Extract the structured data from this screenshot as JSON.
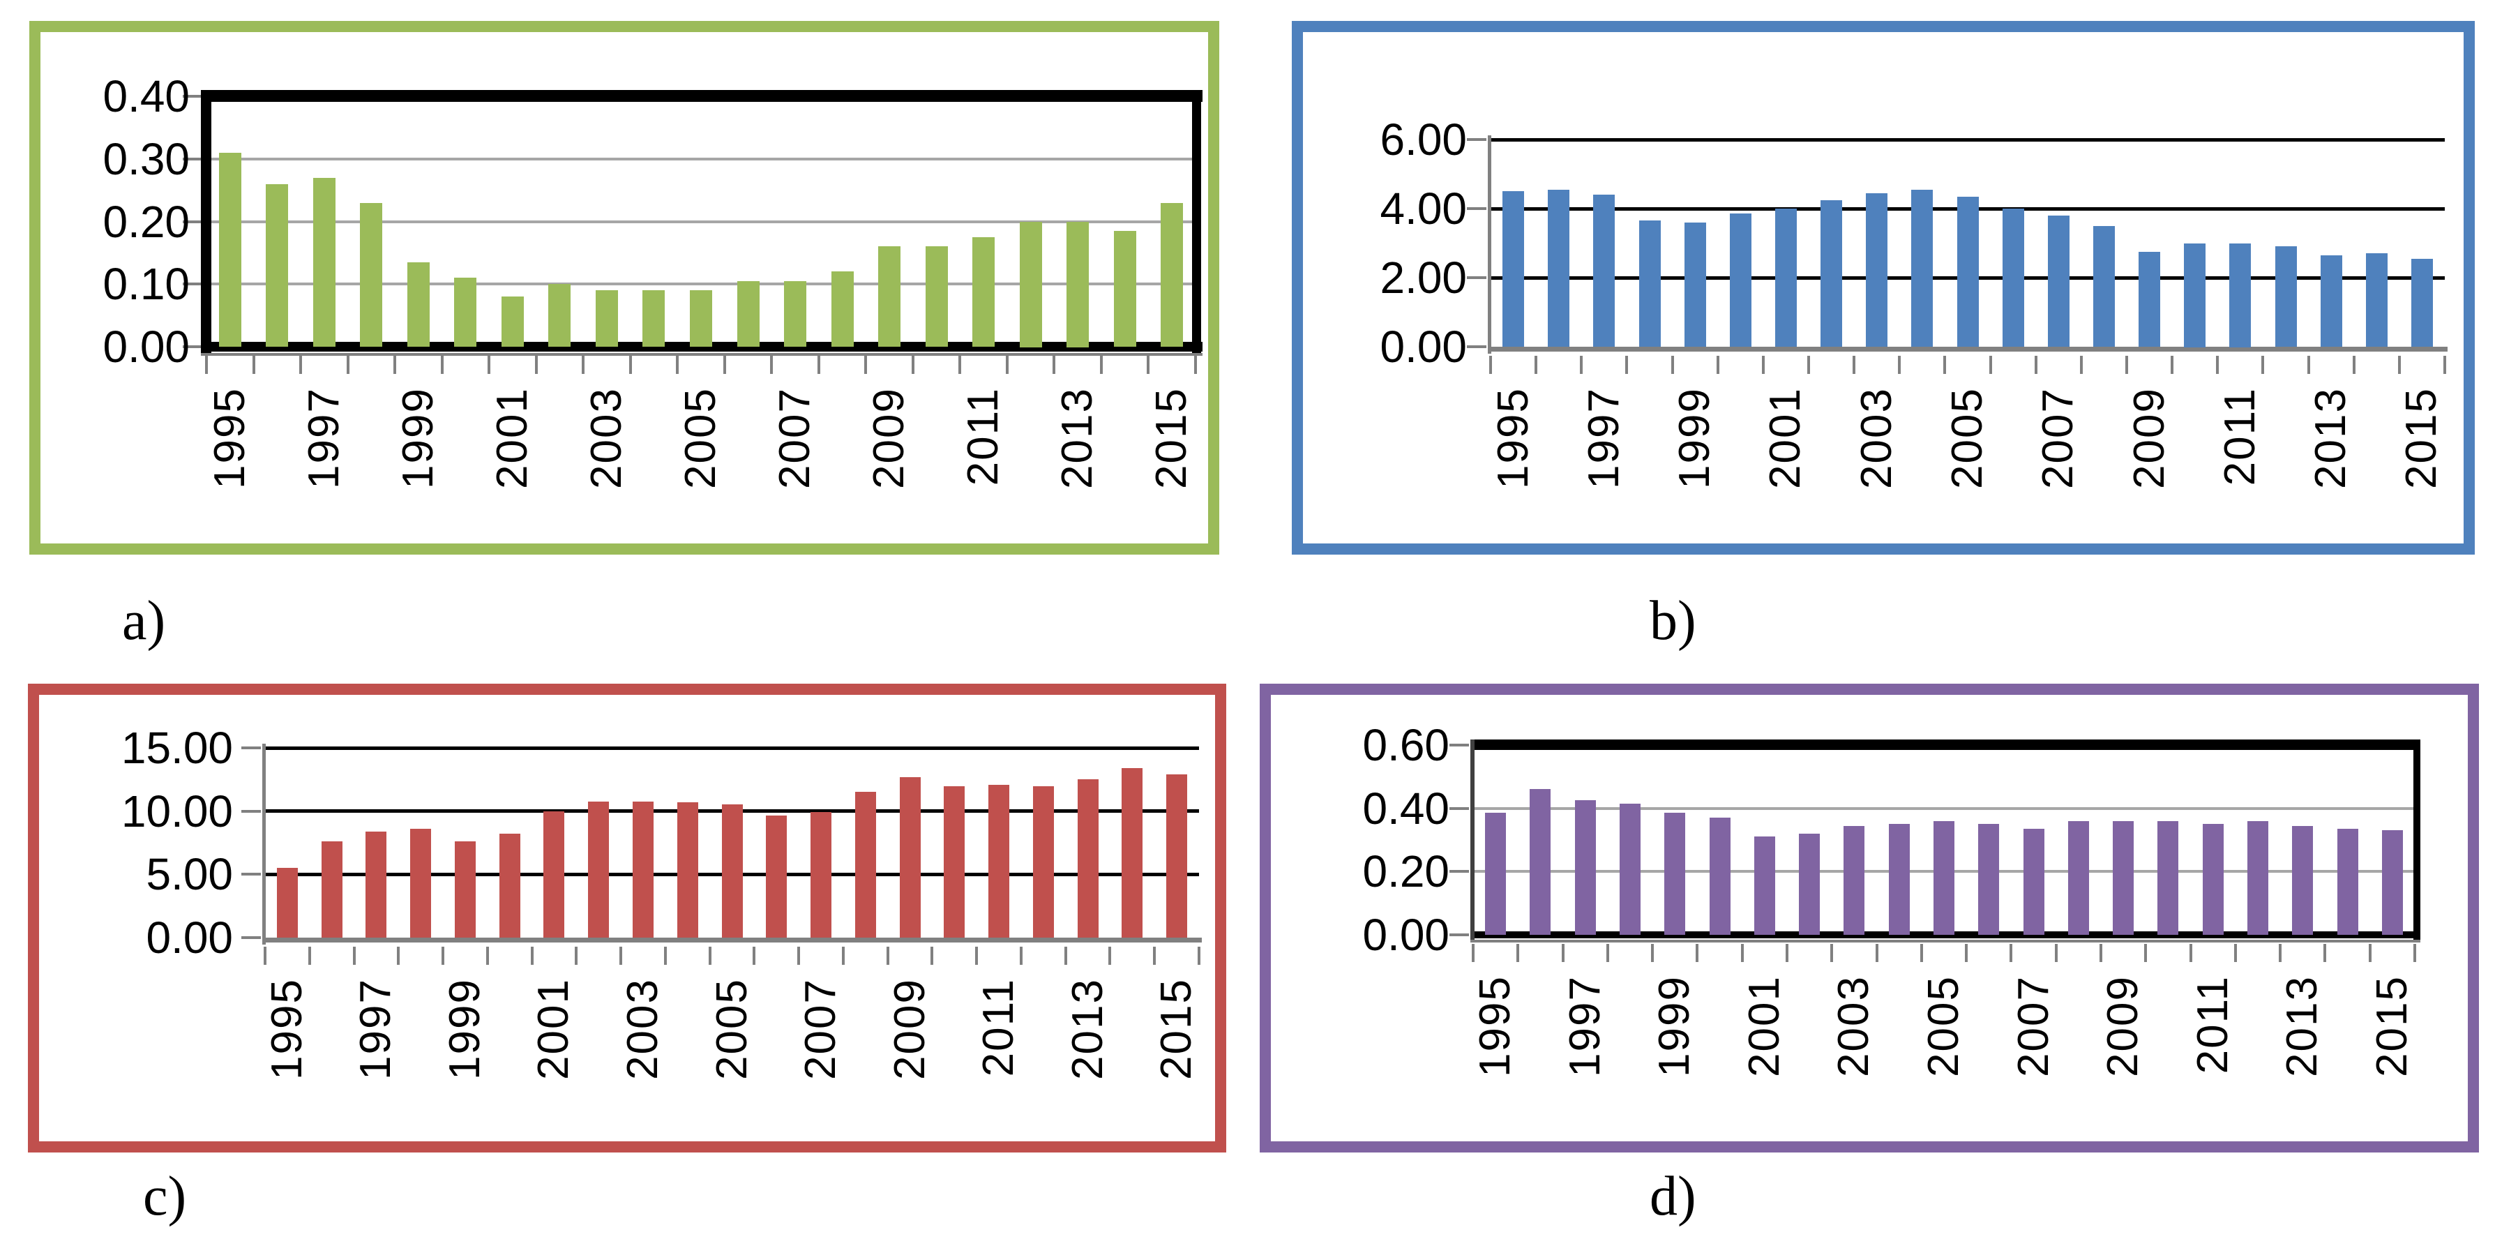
{
  "figure": {
    "background_color": "#FFFFFF",
    "axis_gray": "#808080",
    "gridline_gray": "#A6A6A6",
    "text_color": "#000000"
  },
  "chart_data": [
    {
      "id": "a",
      "type": "bar",
      "caption": "a)",
      "panel_border_color": "#9BBB59",
      "bar_color": "#9BBB59",
      "title": "",
      "xlabel": "",
      "ylabel": "",
      "grid": true,
      "legend": "none",
      "plot_frame": "black-box",
      "ylim": [
        0,
        0.4
      ],
      "y_ticks": [
        "0.00",
        "0.10",
        "0.20",
        "0.30",
        "0.40"
      ],
      "y_tick_values": [
        0,
        0.1,
        0.2,
        0.3,
        0.4
      ],
      "x_tick_labels": [
        "1995",
        "1997",
        "1999",
        "2001",
        "2003",
        "2005",
        "2007",
        "2009",
        "2011",
        "2013",
        "2015"
      ],
      "categories": [
        1995,
        1996,
        1997,
        1998,
        1999,
        2000,
        2001,
        2002,
        2003,
        2004,
        2005,
        2006,
        2007,
        2008,
        2009,
        2010,
        2011,
        2012,
        2013,
        2014,
        2015
      ],
      "values": [
        0.31,
        0.26,
        0.27,
        0.23,
        0.135,
        0.11,
        0.08,
        0.1,
        0.09,
        0.09,
        0.09,
        0.105,
        0.105,
        0.12,
        0.16,
        0.16,
        0.175,
        0.2,
        0.2,
        0.185,
        0.23
      ]
    },
    {
      "id": "b",
      "type": "bar",
      "caption": "b)",
      "panel_border_color": "#4F81BD",
      "bar_color": "#4F81BD",
      "title": "",
      "xlabel": "",
      "ylabel": "",
      "grid": true,
      "legend": "none",
      "plot_frame": "open",
      "ylim": [
        0,
        6.0
      ],
      "y_ticks": [
        "0.00",
        "2.00",
        "4.00",
        "6.00"
      ],
      "y_tick_values": [
        0,
        2.0,
        4.0,
        6.0
      ],
      "x_tick_labels": [
        "1995",
        "1997",
        "1999",
        "2001",
        "2003",
        "2005",
        "2007",
        "2009",
        "2011",
        "2013",
        "2015"
      ],
      "categories": [
        1995,
        1996,
        1997,
        1998,
        1999,
        2000,
        2001,
        2002,
        2003,
        2004,
        2005,
        2006,
        2007,
        2008,
        2009,
        2010,
        2011,
        2012,
        2013,
        2014,
        2015
      ],
      "values": [
        4.5,
        4.55,
        4.4,
        3.65,
        3.6,
        3.85,
        4.0,
        4.25,
        4.45,
        4.55,
        4.35,
        4.0,
        3.8,
        3.5,
        2.75,
        3.0,
        3.0,
        2.9,
        2.65,
        2.7,
        2.55
      ]
    },
    {
      "id": "c",
      "type": "bar",
      "caption": "c)",
      "panel_border_color": "#C0504D",
      "bar_color": "#C0504D",
      "title": "",
      "xlabel": "",
      "ylabel": "",
      "grid": true,
      "legend": "none",
      "plot_frame": "open",
      "ylim": [
        0,
        15.0
      ],
      "y_ticks": [
        "0.00",
        "5.00",
        "10.00",
        "15.00"
      ],
      "y_tick_values": [
        0,
        5.0,
        10.0,
        15.0
      ],
      "x_tick_labels": [
        "1995",
        "1997",
        "1999",
        "2001",
        "2003",
        "2005",
        "2007",
        "2009",
        "2011",
        "2013",
        "2015"
      ],
      "categories": [
        1995,
        1996,
        1997,
        1998,
        1999,
        2000,
        2001,
        2002,
        2003,
        2004,
        2005,
        2006,
        2007,
        2008,
        2009,
        2010,
        2011,
        2012,
        2013,
        2014,
        2015
      ],
      "values": [
        5.5,
        7.6,
        8.4,
        8.6,
        7.6,
        8.2,
        10.0,
        10.75,
        10.75,
        10.7,
        10.55,
        9.65,
        9.95,
        11.5,
        12.7,
        11.95,
        12.1,
        11.95,
        12.5,
        13.4,
        12.9
      ]
    },
    {
      "id": "d",
      "type": "bar",
      "caption": "d)",
      "panel_border_color": "#8064A2",
      "bar_color": "#8064A2",
      "title": "",
      "xlabel": "",
      "ylabel": "",
      "grid": true,
      "legend": "none",
      "plot_frame": "black-top-right",
      "ylim": [
        0,
        0.6
      ],
      "y_ticks": [
        "0.00",
        "0.20",
        "0.40",
        "0.60"
      ],
      "y_tick_values": [
        0,
        0.2,
        0.4,
        0.6
      ],
      "x_tick_labels": [
        "1995",
        "1997",
        "1999",
        "2001",
        "2003",
        "2005",
        "2007",
        "2009",
        "2011",
        "2013",
        "2015"
      ],
      "categories": [
        1995,
        1996,
        1997,
        1998,
        1999,
        2000,
        2001,
        2002,
        2003,
        2004,
        2005,
        2006,
        2007,
        2008,
        2009,
        2010,
        2011,
        2012,
        2013,
        2014,
        2015
      ],
      "values": [
        0.385,
        0.46,
        0.425,
        0.415,
        0.385,
        0.37,
        0.31,
        0.32,
        0.345,
        0.35,
        0.36,
        0.35,
        0.335,
        0.36,
        0.36,
        0.36,
        0.35,
        0.36,
        0.345,
        0.335,
        0.33
      ]
    }
  ]
}
